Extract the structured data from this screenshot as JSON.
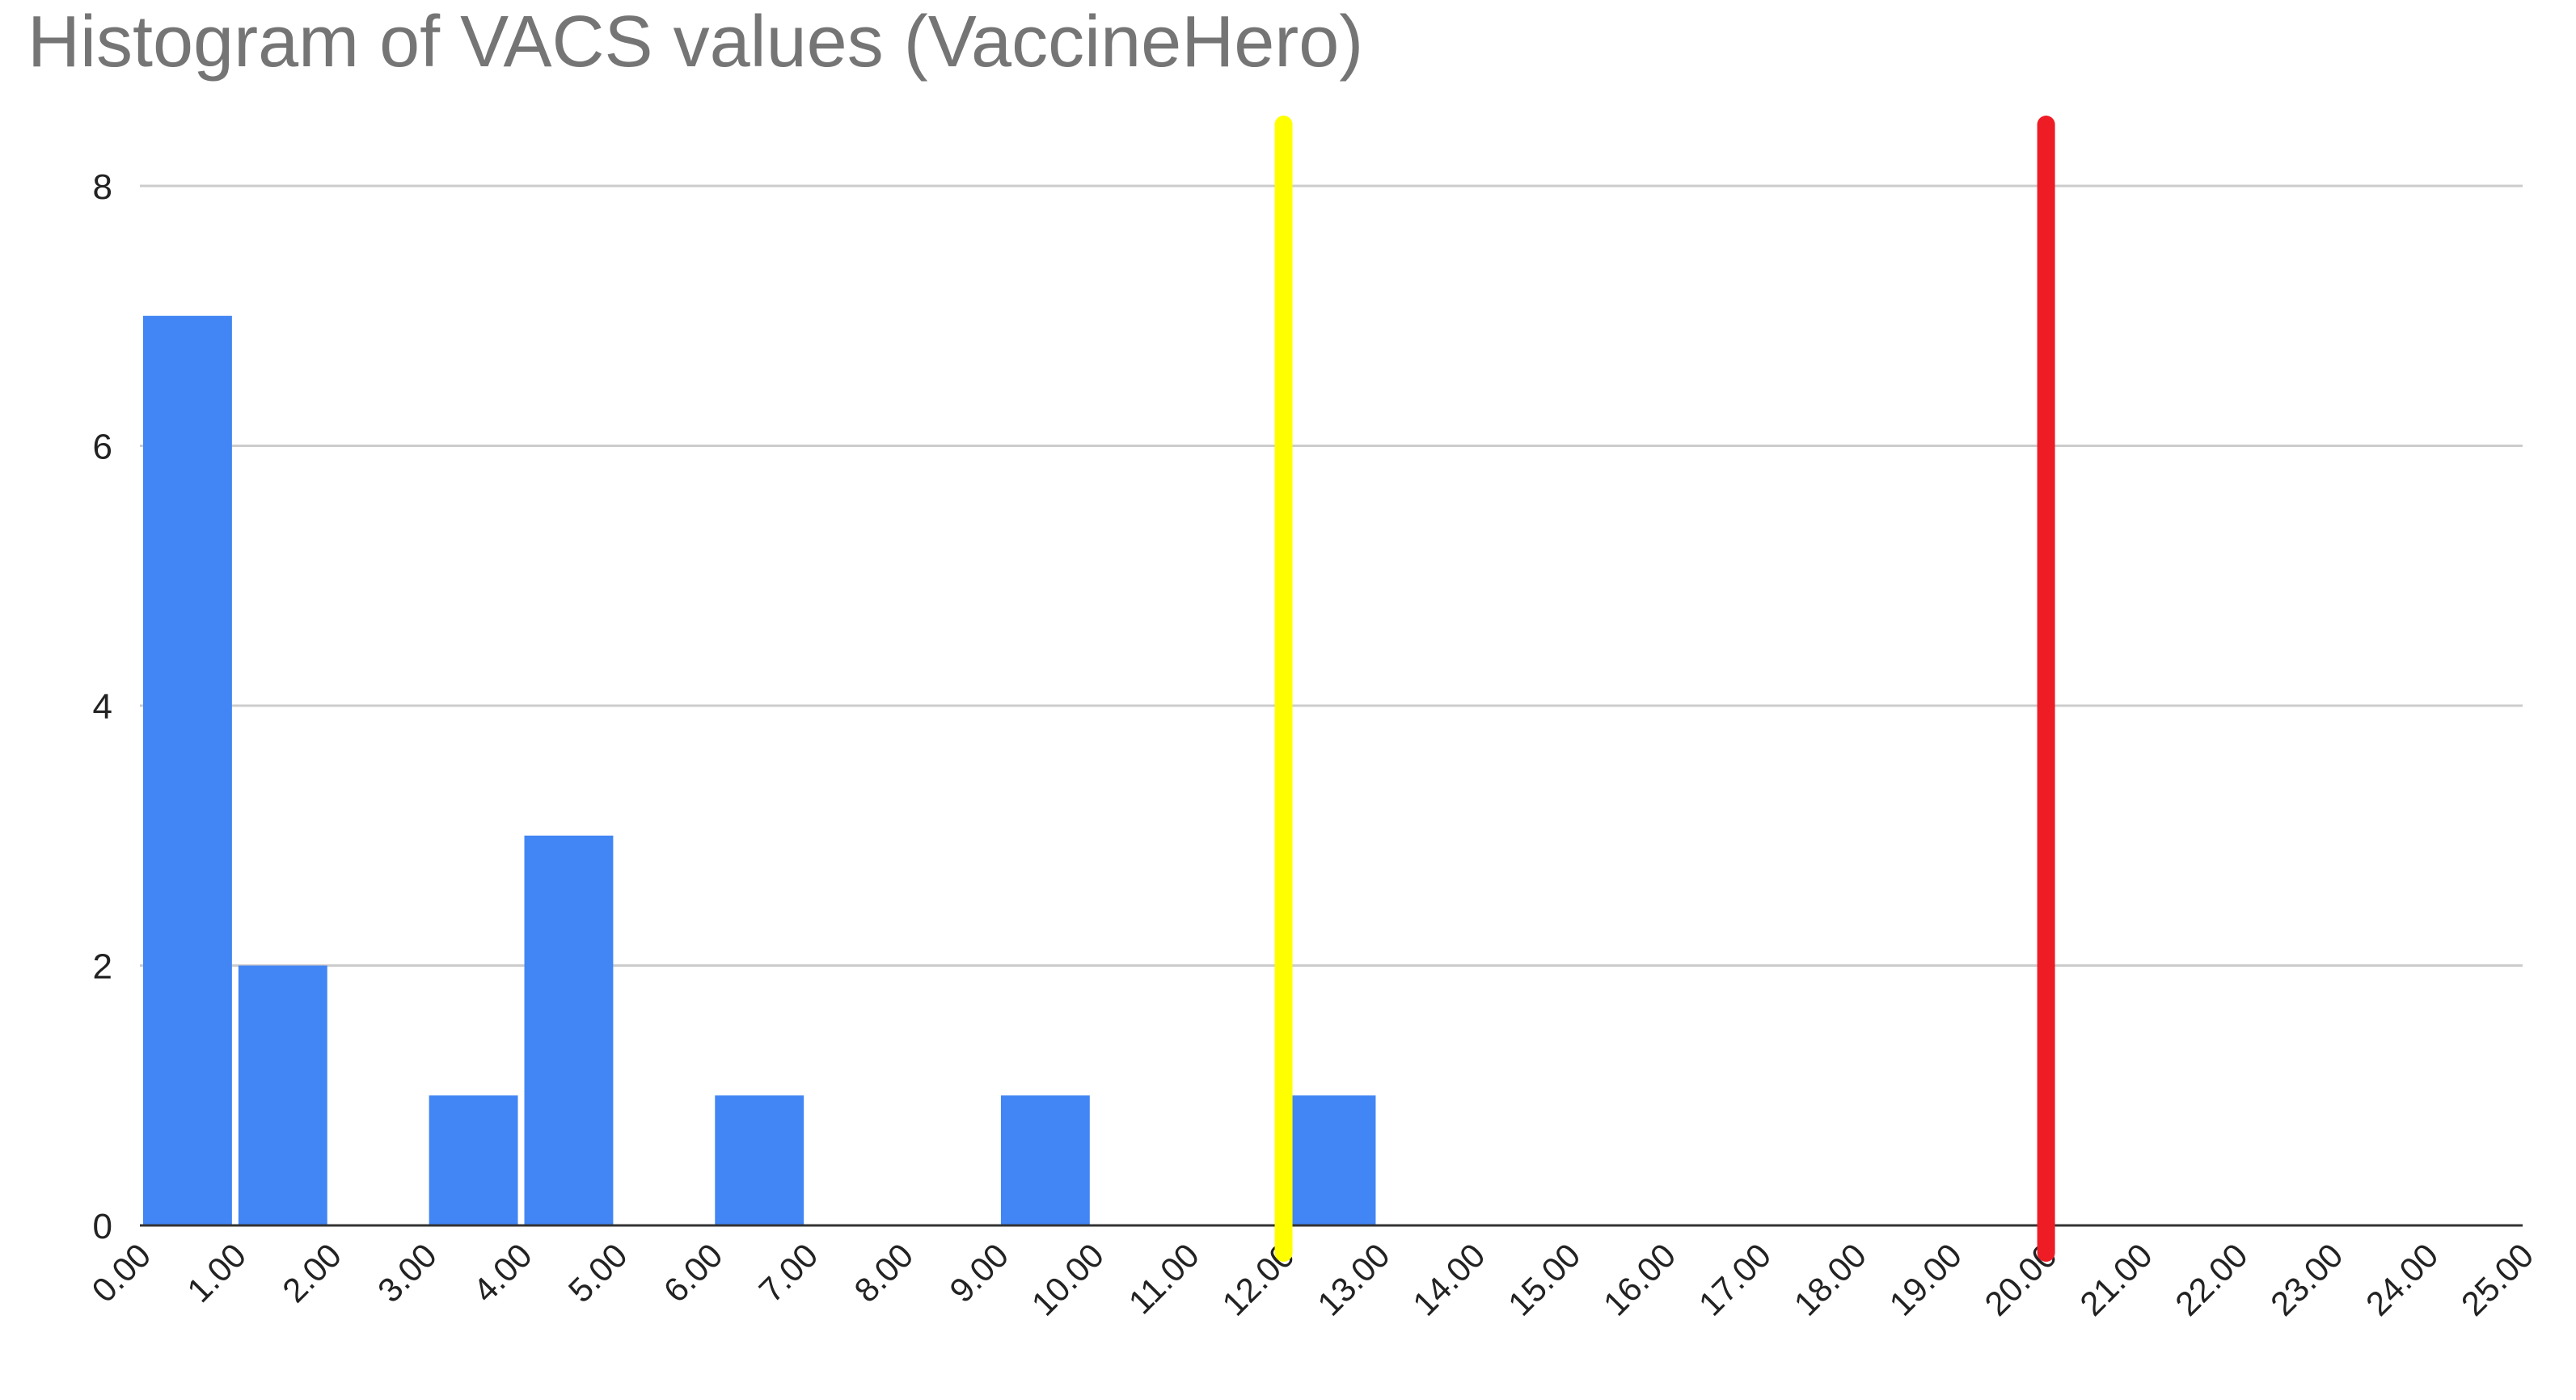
{
  "chart_data": {
    "type": "histogram",
    "title": "Histogram of VACS values (VaccineHero)",
    "bins": [
      0,
      1,
      2,
      3,
      4,
      5,
      6,
      7,
      8,
      9,
      10,
      11,
      12,
      13,
      14,
      15,
      16,
      17,
      18,
      19,
      20,
      21,
      22,
      23,
      24,
      25
    ],
    "counts": [
      7,
      2,
      0,
      1,
      3,
      0,
      1,
      0,
      0,
      1,
      0,
      0,
      1,
      0,
      0,
      0,
      0,
      0,
      0,
      0,
      0,
      0,
      0,
      0,
      0
    ],
    "color": "#4285f4",
    "xlim": [
      0,
      25
    ],
    "xticks": [
      {
        "value": 0,
        "label": "0.00"
      },
      {
        "value": 1,
        "label": "1.00"
      },
      {
        "value": 2,
        "label": "2.00"
      },
      {
        "value": 3,
        "label": "3.00"
      },
      {
        "value": 4,
        "label": "4.00"
      },
      {
        "value": 5,
        "label": "5.00"
      },
      {
        "value": 6,
        "label": "6.00"
      },
      {
        "value": 7,
        "label": "7.00"
      },
      {
        "value": 8,
        "label": "8.00"
      },
      {
        "value": 9,
        "label": "9.00"
      },
      {
        "value": 10,
        "label": "10.00"
      },
      {
        "value": 11,
        "label": "11.00"
      },
      {
        "value": 12,
        "label": "12.00"
      },
      {
        "value": 13,
        "label": "13.00"
      },
      {
        "value": 14,
        "label": "14.00"
      },
      {
        "value": 15,
        "label": "15.00"
      },
      {
        "value": 16,
        "label": "16.00"
      },
      {
        "value": 17,
        "label": "17.00"
      },
      {
        "value": 18,
        "label": "18.00"
      },
      {
        "value": 19,
        "label": "19.00"
      },
      {
        "value": 20,
        "label": "20.00"
      },
      {
        "value": 21,
        "label": "21.00"
      },
      {
        "value": 22,
        "label": "22.00"
      },
      {
        "value": 23,
        "label": "23.00"
      },
      {
        "value": 24,
        "label": "24.00"
      },
      {
        "value": 25,
        "label": "25.00"
      }
    ],
    "ylim": [
      0,
      8
    ],
    "yticks": [
      0,
      2,
      4,
      6,
      8
    ],
    "grid": true,
    "reference_lines": [
      {
        "value": 12,
        "color": "#ffff00"
      },
      {
        "value": 20,
        "color": "#ee1c25"
      }
    ]
  }
}
